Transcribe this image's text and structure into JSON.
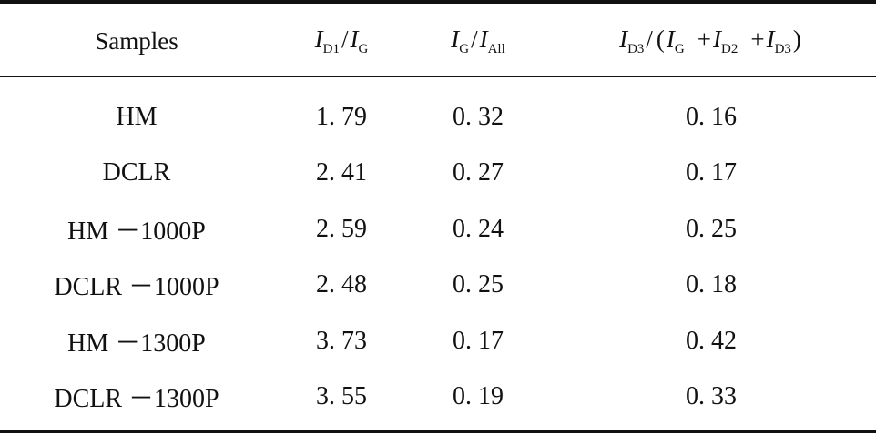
{
  "table": {
    "headers": {
      "samples": "Samples",
      "col1": {
        "num_sym": "I",
        "num_sub": "D1",
        "slash": "/",
        "den_sym": "I",
        "den_sub": "G"
      },
      "col2": {
        "num_sym": "I",
        "num_sub": "G",
        "slash": "/",
        "den_sym": "I",
        "den_sub": "All"
      },
      "col3": {
        "num_sym": "I",
        "num_sub": "D3",
        "slash": "/",
        "lparen": "(",
        "t1_sym": "I",
        "t1_sub": "G",
        "plus1": "+",
        "t2_sym": "I",
        "t2_sub": "D2",
        "plus2": "+",
        "t3_sym": "I",
        "t3_sub": "D3",
        "rparen": ")"
      }
    },
    "rows": [
      {
        "sample": "HM",
        "id1_ig": "1. 79",
        "ig_iall": "0. 32",
        "id3_ratio": "0. 16"
      },
      {
        "sample": "DCLR",
        "id1_ig": "2. 41",
        "ig_iall": "0. 27",
        "id3_ratio": "0. 17"
      },
      {
        "sample": "HM －1000P",
        "id1_ig": "2. 59",
        "ig_iall": "0. 24",
        "id3_ratio": "0. 25"
      },
      {
        "sample": "DCLR －1000P",
        "id1_ig": "2. 48",
        "ig_iall": "0. 25",
        "id3_ratio": "0. 18"
      },
      {
        "sample": "HM －1300P",
        "id1_ig": "3. 73",
        "ig_iall": "0. 17",
        "id3_ratio": "0. 42"
      },
      {
        "sample": "DCLR －1300P",
        "id1_ig": "3. 55",
        "ig_iall": "0. 19",
        "id3_ratio": "0. 33"
      }
    ]
  }
}
